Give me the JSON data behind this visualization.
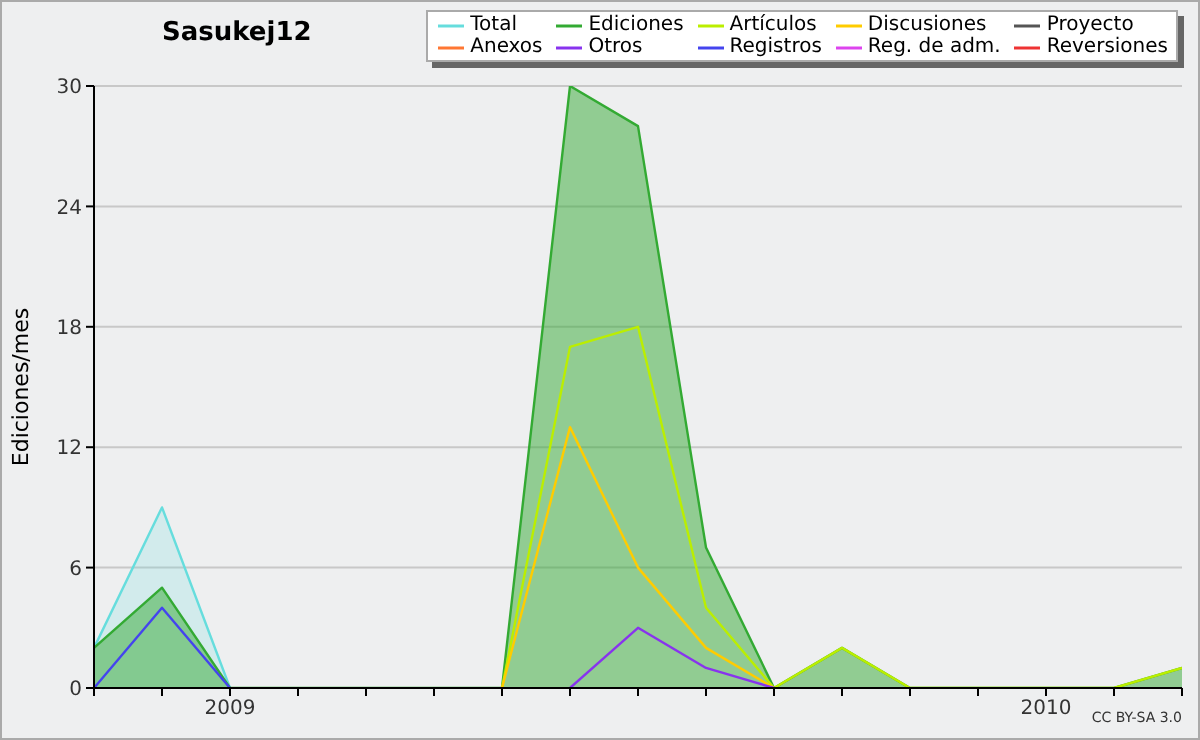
{
  "chart_data": {
    "type": "line",
    "title": "Sasukej12",
    "ylabel": "Ediciones/mes",
    "annotations": [
      "CC BY-SA 3.0"
    ],
    "x": [
      "2008-11",
      "2008-12",
      "2009-01",
      "2009-02",
      "2009-03",
      "2009-04",
      "2009-05",
      "2009-06",
      "2009-07",
      "2009-08",
      "2009-09",
      "2009-10",
      "2009-11",
      "2009-12",
      "2010-01",
      "2010-02",
      "2010-03"
    ],
    "series": [
      {
        "name": "Total",
        "type": "area",
        "color": "#66dddd",
        "values": [
          2,
          9,
          0,
          null,
          null,
          null,
          null,
          null,
          null,
          null,
          null,
          null,
          null,
          null,
          null,
          null,
          null
        ]
      },
      {
        "name": "Ediciones",
        "type": "area",
        "color": "#33aa33",
        "values": [
          2,
          5,
          0,
          0,
          0,
          0,
          0,
          30,
          28,
          7,
          0,
          2,
          0,
          0,
          0,
          0,
          1
        ]
      },
      {
        "name": "Artículos",
        "color": "#bbee00",
        "values": [
          null,
          null,
          null,
          null,
          null,
          null,
          0,
          17,
          18,
          4,
          0,
          2,
          0,
          0,
          0,
          0,
          1
        ]
      },
      {
        "name": "Discusiones",
        "color": "#ffcc00",
        "values": [
          null,
          null,
          null,
          null,
          null,
          null,
          0,
          13,
          6,
          2,
          0,
          null,
          null,
          null,
          null,
          null,
          null
        ]
      },
      {
        "name": "Proyecto",
        "color": "#555555",
        "values": [
          null,
          null,
          null,
          null,
          null,
          null,
          null,
          null,
          null,
          null,
          null,
          null,
          null,
          null,
          null,
          null,
          null
        ]
      },
      {
        "name": "Anexos",
        "color": "#ff7733",
        "values": [
          null,
          null,
          null,
          null,
          null,
          null,
          null,
          null,
          null,
          null,
          null,
          null,
          null,
          null,
          null,
          null,
          null
        ]
      },
      {
        "name": "Otros",
        "color": "#8833ee",
        "values": [
          null,
          null,
          null,
          null,
          null,
          null,
          null,
          0,
          3,
          1,
          0,
          null,
          null,
          null,
          null,
          null,
          null
        ]
      },
      {
        "name": "Registros",
        "color": "#4444ee",
        "values": [
          0,
          4,
          0,
          null,
          null,
          null,
          null,
          null,
          null,
          null,
          null,
          null,
          null,
          null,
          null,
          null,
          null
        ]
      },
      {
        "name": "Reg. de adm.",
        "color": "#dd44ee",
        "values": [
          null,
          null,
          null,
          null,
          null,
          null,
          null,
          null,
          null,
          null,
          null,
          null,
          null,
          null,
          null,
          null,
          null
        ]
      },
      {
        "name": "Reversiones",
        "color": "#ee3333",
        "values": [
          null,
          null,
          null,
          null,
          null,
          null,
          null,
          null,
          null,
          null,
          null,
          null,
          null,
          null,
          null,
          null,
          null
        ]
      }
    ],
    "xlim": [
      "2008-11",
      "2010-03"
    ],
    "xticks": [
      {
        "value": "2008-11",
        "label": null
      },
      {
        "value": "2008-12",
        "label": null
      },
      {
        "value": "2009-01",
        "label": "2009"
      },
      {
        "value": "2009-02",
        "label": null
      },
      {
        "value": "2009-03",
        "label": null
      },
      {
        "value": "2009-04",
        "label": null
      },
      {
        "value": "2009-05",
        "label": null
      },
      {
        "value": "2009-06",
        "label": null
      },
      {
        "value": "2009-07",
        "label": null
      },
      {
        "value": "2009-08",
        "label": null
      },
      {
        "value": "2009-09",
        "label": null
      },
      {
        "value": "2009-10",
        "label": null
      },
      {
        "value": "2009-11",
        "label": null
      },
      {
        "value": "2009-12",
        "label": null
      },
      {
        "value": "2010-01",
        "label": "2010"
      },
      {
        "value": "2010-02",
        "label": null
      },
      {
        "value": "2010-03",
        "label": null
      }
    ],
    "ylim": [
      0,
      30
    ],
    "yticks": [
      0,
      6,
      12,
      18,
      24,
      30
    ],
    "grid": "y",
    "legend": "top right"
  }
}
